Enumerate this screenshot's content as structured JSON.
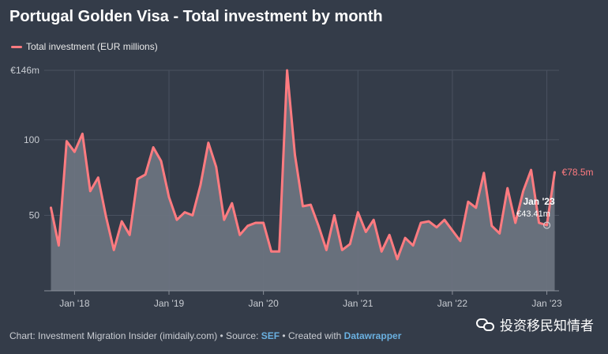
{
  "title": "Portugal Golden Visa - Total investment by month",
  "legend": {
    "label": "Total investment (EUR millions)",
    "color": "#ff7b80"
  },
  "footer": {
    "prefix": "Chart: Investment Migration Insider (imidaily.com) • Source: ",
    "source_link": "SEF",
    "middle": " • Created with ",
    "tool_link": "Datawrapper"
  },
  "watermark": {
    "text": "投资移民知情者",
    "icon": "wechat-icon"
  },
  "colors": {
    "background": "#343c49",
    "line": "#ff7b80",
    "area": "#6c7380",
    "grid": "#4a5260",
    "tick_text": "#c8ccd2"
  },
  "chart_data": {
    "type": "area",
    "x_start": "2017-10",
    "x_end": "2023-02",
    "x_ticks": [
      {
        "date": "2018-01",
        "label": "Jan '18"
      },
      {
        "date": "2019-01",
        "label": "Jan '19"
      },
      {
        "date": "2020-01",
        "label": "Jan '20"
      },
      {
        "date": "2021-01",
        "label": "Jan '21"
      },
      {
        "date": "2022-01",
        "label": "Jan '22"
      },
      {
        "date": "2023-01",
        "label": "Jan '23"
      }
    ],
    "y_ticks": [
      {
        "value": 146,
        "label": "€146m"
      },
      {
        "value": 100,
        "label": "100"
      },
      {
        "value": 50,
        "label": "50"
      }
    ],
    "ylim": [
      0,
      146
    ],
    "grid": true,
    "legend_position": "top-left",
    "series": [
      {
        "name": "Total investment (EUR millions)",
        "x": [
          "2017-10",
          "2017-11",
          "2017-12",
          "2018-01",
          "2018-02",
          "2018-03",
          "2018-04",
          "2018-05",
          "2018-06",
          "2018-07",
          "2018-08",
          "2018-09",
          "2018-10",
          "2018-11",
          "2018-12",
          "2019-01",
          "2019-02",
          "2019-03",
          "2019-04",
          "2019-05",
          "2019-06",
          "2019-07",
          "2019-08",
          "2019-09",
          "2019-10",
          "2019-11",
          "2019-12",
          "2020-01",
          "2020-02",
          "2020-03",
          "2020-04",
          "2020-05",
          "2020-06",
          "2020-07",
          "2020-08",
          "2020-09",
          "2020-10",
          "2020-11",
          "2020-12",
          "2021-01",
          "2021-02",
          "2021-03",
          "2021-04",
          "2021-05",
          "2021-06",
          "2021-07",
          "2021-08",
          "2021-09",
          "2021-10",
          "2021-11",
          "2021-12",
          "2022-01",
          "2022-02",
          "2022-03",
          "2022-04",
          "2022-05",
          "2022-06",
          "2022-07",
          "2022-08",
          "2022-09",
          "2022-10",
          "2022-11",
          "2022-12",
          "2023-01",
          "2023-02"
        ],
        "values": [
          55,
          30,
          99,
          92,
          104,
          66,
          75,
          49,
          27,
          46,
          37,
          74,
          77,
          95,
          86,
          62,
          47,
          52,
          50,
          70,
          98,
          82,
          47,
          58,
          37,
          43,
          45,
          45,
          26,
          26,
          146,
          90,
          56,
          57,
          43,
          27,
          50,
          27,
          31,
          52,
          39,
          47,
          26,
          37,
          21,
          35,
          30,
          45,
          46,
          42,
          47,
          40,
          33,
          59,
          55,
          78,
          43,
          38,
          68,
          45,
          66,
          80,
          45,
          43.41,
          78.5
        ]
      }
    ],
    "annotations": [
      {
        "date": "2023-01",
        "value": 43.41,
        "label_date": "Jan '23",
        "label_value": "€43.41m"
      }
    ],
    "end_label": "€78.5m"
  }
}
